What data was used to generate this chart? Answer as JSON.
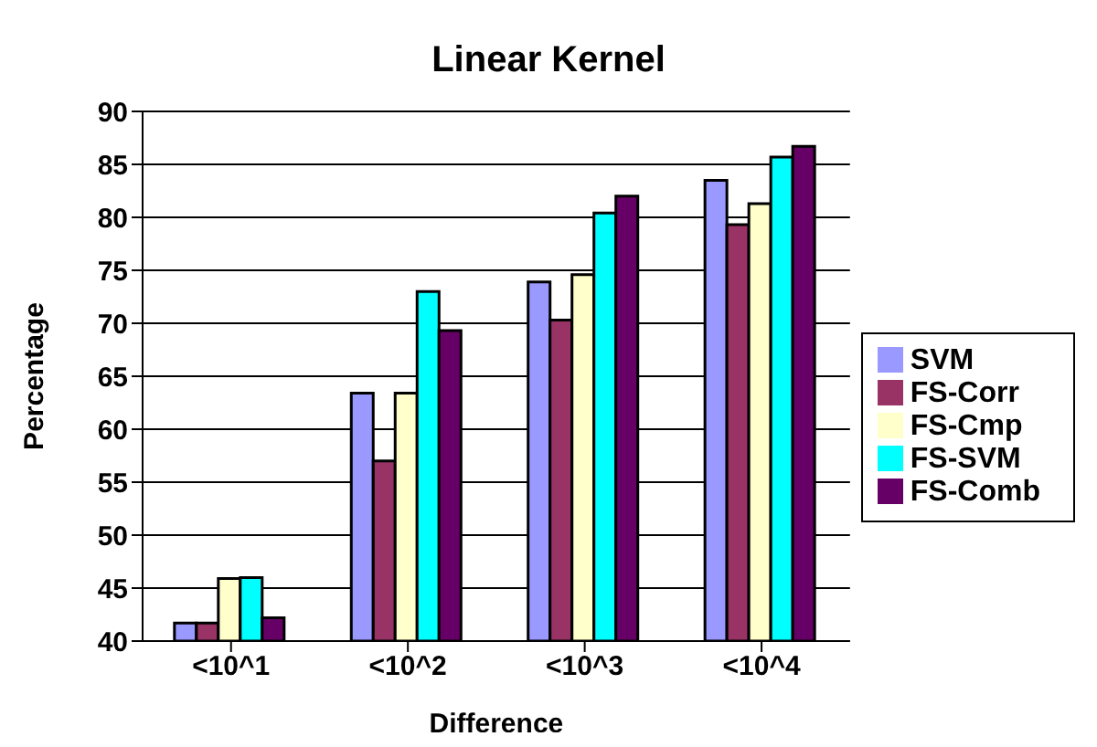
{
  "chart_data": {
    "type": "bar",
    "title": "Linear Kernel",
    "xlabel": "Difference",
    "ylabel": "Percentage",
    "categories": [
      "<10^1",
      "<10^2",
      "<10^3",
      "<10^4"
    ],
    "series": [
      {
        "name": "SVM",
        "color": "#9999ff",
        "values": [
          41.7,
          63.4,
          73.9,
          83.5
        ]
      },
      {
        "name": "FS-Corr",
        "color": "#993366",
        "values": [
          41.7,
          57.0,
          70.3,
          79.3
        ]
      },
      {
        "name": "FS-Cmp",
        "color": "#ffffcc",
        "values": [
          45.9,
          63.4,
          74.6,
          81.3
        ]
      },
      {
        "name": "FS-SVM",
        "color": "#00ffff",
        "values": [
          46.0,
          73.0,
          80.4,
          85.7
        ]
      },
      {
        "name": "FS-Comb",
        "color": "#660066",
        "values": [
          42.2,
          69.3,
          82.0,
          86.7
        ]
      }
    ],
    "ylim": [
      40,
      90
    ],
    "yticks": [
      40,
      45,
      50,
      55,
      60,
      65,
      70,
      75,
      80,
      85,
      90
    ],
    "grid": "y",
    "legend": "right"
  }
}
